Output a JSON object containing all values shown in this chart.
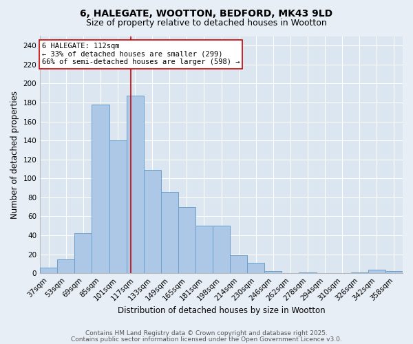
{
  "title_line1": "6, HALEGATE, WOOTTON, BEDFORD, MK43 9LD",
  "title_line2": "Size of property relative to detached houses in Wootton",
  "categories": [
    "37sqm",
    "53sqm",
    "69sqm",
    "85sqm",
    "101sqm",
    "117sqm",
    "133sqm",
    "149sqm",
    "165sqm",
    "181sqm",
    "198sqm",
    "214sqm",
    "230sqm",
    "246sqm",
    "262sqm",
    "278sqm",
    "294sqm",
    "310sqm",
    "326sqm",
    "342sqm",
    "358sqm"
  ],
  "values": [
    6,
    15,
    42,
    178,
    140,
    187,
    109,
    86,
    70,
    50,
    50,
    19,
    11,
    2,
    0,
    1,
    0,
    0,
    1,
    4,
    2
  ],
  "bar_color": "#adc8e6",
  "bar_edge_color": "#6aa0cc",
  "vline_x": 4.75,
  "vline_color": "#cc0000",
  "annotation_text": "6 HALEGATE: 112sqm\n← 33% of detached houses are smaller (299)\n66% of semi-detached houses are larger (598) →",
  "annotation_box_color": "#ffffff",
  "annotation_box_edge": "#cc0000",
  "xlabel": "Distribution of detached houses by size in Wootton",
  "ylabel": "Number of detached properties",
  "yticks": [
    0,
    20,
    40,
    60,
    80,
    100,
    120,
    140,
    160,
    180,
    200,
    220,
    240
  ],
  "ylim": [
    0,
    250
  ],
  "background_color": "#e8eef5",
  "plot_bg_color": "#dce6f0",
  "grid_color": "#ffffff",
  "footnote_line1": "Contains HM Land Registry data © Crown copyright and database right 2025.",
  "footnote_line2": "Contains public sector information licensed under the Open Government Licence v3.0.",
  "title_fontsize": 10,
  "subtitle_fontsize": 9,
  "axis_label_fontsize": 8.5,
  "tick_fontsize": 7.5,
  "annotation_fontsize": 7.5,
  "footnote_fontsize": 6.5
}
